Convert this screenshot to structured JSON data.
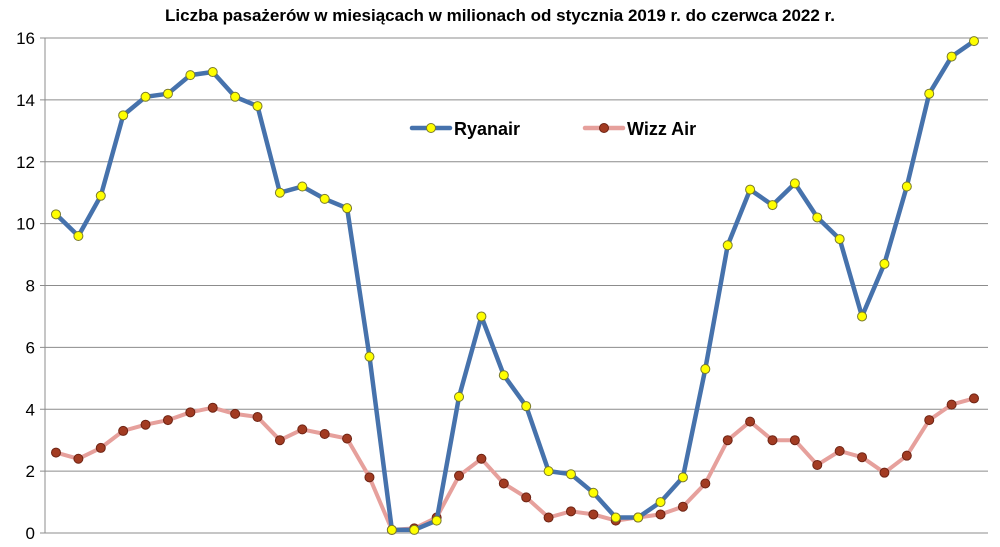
{
  "chart_data": {
    "type": "line",
    "title": "Liczba pasażerów w miesiącach w milionach od stycznia 2019 r. do czerwca 2022 r.",
    "xlabel": "",
    "ylabel": "",
    "ylim": [
      0,
      16
    ],
    "y_ticks": [
      "0",
      "2",
      "4",
      "6",
      "8",
      "10",
      "12",
      "14",
      "16"
    ],
    "grid": true,
    "legend_position": "top-center",
    "series": [
      {
        "name": "Ryanair",
        "color": "#4672ac",
        "marker_color": "#ffff00",
        "values": [
          10.3,
          9.6,
          10.9,
          13.5,
          14.1,
          14.2,
          14.8,
          14.9,
          14.1,
          13.8,
          11.0,
          11.2,
          10.8,
          10.5,
          5.7,
          0.1,
          0.1,
          0.4,
          4.4,
          7.0,
          5.1,
          4.1,
          2.0,
          1.9,
          1.3,
          0.5,
          0.5,
          1.0,
          1.8,
          5.3,
          9.3,
          11.1,
          10.6,
          11.3,
          10.2,
          9.5,
          7.0,
          8.7,
          11.2,
          14.2,
          15.4,
          15.9
        ]
      },
      {
        "name": "Wizz Air",
        "color": "#e6a09c",
        "marker_color": "#a23b22",
        "values": [
          2.6,
          2.4,
          2.75,
          3.3,
          3.5,
          3.65,
          3.9,
          4.05,
          3.85,
          3.75,
          3.0,
          3.35,
          3.2,
          3.05,
          1.8,
          0.1,
          0.15,
          0.5,
          1.85,
          2.4,
          1.6,
          1.15,
          0.5,
          0.7,
          0.6,
          0.4,
          0.5,
          0.6,
          0.85,
          1.6,
          3.0,
          3.6,
          3.0,
          3.0,
          2.2,
          2.65,
          2.45,
          1.95,
          2.5,
          3.65,
          4.15,
          4.35
        ]
      }
    ]
  }
}
